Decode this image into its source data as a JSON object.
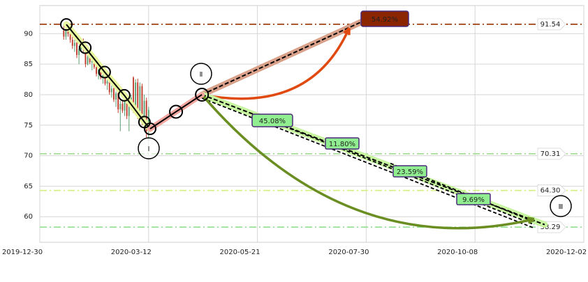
{
  "chart_data": {
    "type": "candlestick",
    "x": [
      11,
      12,
      13,
      14,
      15,
      16,
      17,
      18,
      19,
      20,
      21,
      22,
      23,
      24,
      25,
      26,
      27,
      28,
      29,
      30,
      31,
      32,
      33,
      34,
      35,
      36,
      37,
      38,
      39,
      40,
      41,
      42,
      43,
      44,
      45,
      46,
      47,
      48,
      49,
      50
    ],
    "open": [
      90.5,
      89.5,
      91,
      90,
      89,
      88,
      88.5,
      86.5,
      87.5,
      88.5,
      87.3,
      85,
      86.2,
      85.3,
      85.8,
      84.5,
      83.4,
      84.2,
      82.8,
      83.2,
      81.8,
      82.2,
      80.4,
      81,
      79.2,
      80.2,
      77.6,
      78.5,
      77.4,
      79.6,
      76.5,
      78.2,
      82.8,
      78,
      82,
      76.8,
      81.4,
      75.8,
      79,
      74
    ],
    "high": [
      91.5,
      91,
      91.5,
      90.5,
      89.5,
      89,
      89,
      88,
      89,
      89.2,
      87.8,
      86.5,
      86.5,
      86,
      86,
      85,
      84.5,
      84.4,
      83.5,
      83.5,
      82.5,
      82.5,
      81.5,
      81.2,
      80.5,
      80.8,
      79,
      79,
      80,
      80,
      79,
      80,
      83,
      82.5,
      82.6,
      82,
      81.8,
      80,
      79.5,
      78
    ],
    "low": [
      89,
      89,
      89.5,
      88.5,
      87.5,
      87,
      86,
      85,
      87,
      87,
      84.5,
      84.8,
      85,
      84,
      84.2,
      83,
      82.5,
      82.5,
      81.8,
      81.5,
      80.8,
      80,
      79.5,
      78.8,
      78,
      77,
      74,
      77,
      76.5,
      76,
      74,
      77.5,
      77,
      77.5,
      76,
      76,
      75,
      74.5,
      73,
      72.5
    ],
    "close": [
      89.5,
      90.8,
      90,
      89,
      88,
      88.5,
      86.5,
      87.5,
      88.8,
      87.3,
      85,
      86.2,
      85.3,
      85.8,
      84.5,
      83.4,
      84.2,
      82.8,
      83.2,
      81.8,
      82.2,
      80.4,
      81,
      79.2,
      80.2,
      77.6,
      78.5,
      77.4,
      79.6,
      76.5,
      78.2,
      79.5,
      78,
      82,
      76.8,
      81.4,
      75.8,
      79,
      74,
      77.5
    ],
    "up_color": "#5a9e6f",
    "down_color": "#c0392b",
    "xlim": [
      0,
      250
    ],
    "xticks": [
      {
        "value": 0,
        "label": "2019-12-30"
      },
      {
        "value": 50,
        "label": "2020-03-12"
      },
      {
        "value": 100,
        "label": "2020-05-21"
      },
      {
        "value": 150,
        "label": "2020-07-30"
      },
      {
        "value": 200,
        "label": "2020-10-08"
      },
      {
        "value": 250,
        "label": "2020-12-02"
      }
    ],
    "ylim": [
      55.8,
      94.6
    ],
    "yticks": [
      60,
      65,
      70,
      75,
      80,
      85,
      90
    ],
    "grid": true,
    "hlines": [
      {
        "value": 91.54,
        "label": "91.54",
        "color": "#993300"
      },
      {
        "value": 70.31,
        "label": "70.31",
        "color": "#9fdc8f"
      },
      {
        "value": 64.3,
        "label": "64.30",
        "color": "#d2f07a"
      },
      {
        "value": 58.29,
        "label": "58.29",
        "color": "#8fe08f"
      }
    ],
    "wave": {
      "x": [
        12.2,
        20.9,
        29.8,
        38.8,
        48.1,
        50.7
      ],
      "y": [
        91.5,
        87.7,
        83.7,
        79.9,
        75.5,
        74.4
      ]
    },
    "rebound": {
      "x": [
        50.7,
        62.6,
        74.5
      ],
      "y": [
        74.4,
        77.2,
        80.0
      ]
    },
    "targets": [
      {
        "text": "54.92%",
        "x": [
          74.5,
          148.6
        ],
        "y": [
          80,
          92.05
        ],
        "color": "#e04a10",
        "band": "#d9a08a",
        "label_bg": "#8b2500"
      },
      {
        "text": "45.08%",
        "x": [
          74.5,
          232
        ],
        "y": [
          80,
          58.7
        ],
        "color": "#6b8e23",
        "band": "#c8f5a0",
        "label_bg": "#90ee90"
      }
    ],
    "segment_labels": [
      "11.80%",
      "23.59%",
      "9.69%"
    ],
    "waves": [
      "Ⅰ",
      "Ⅱ",
      "Ⅲ"
    ]
  }
}
